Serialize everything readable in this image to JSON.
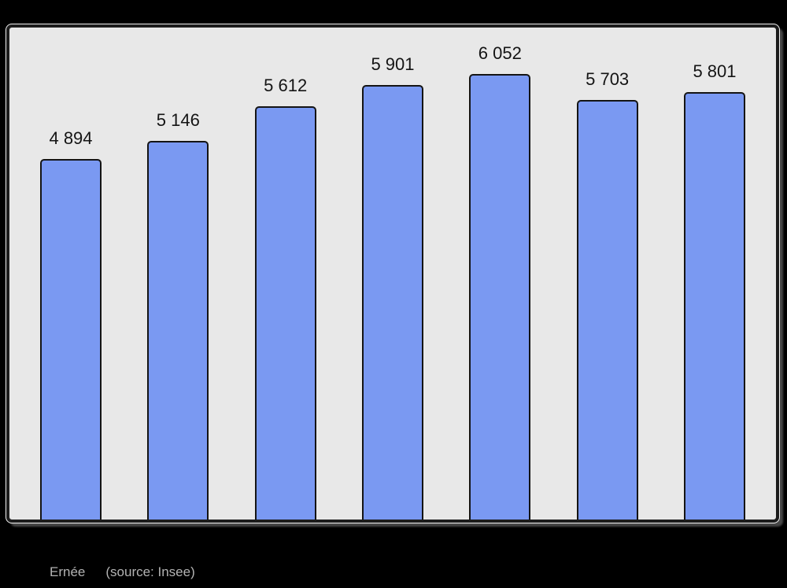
{
  "chart_data": {
    "type": "bar",
    "title": "",
    "values": [
      4894,
      5146,
      5612,
      5901,
      6052,
      5703,
      5801
    ],
    "bar_labels": [
      "4 894",
      "5 146",
      "5 612",
      "5 901",
      "6 052",
      "5 703",
      "5 801"
    ],
    "xlabel": "",
    "ylabel": "",
    "ylim": [
      0,
      6680
    ],
    "grid": false,
    "legend": "none",
    "bar_count": 7
  },
  "caption": {
    "name": "Ernée",
    "source": "(source: Insee)"
  },
  "colors": {
    "page_bg": "#000000",
    "plot_bg": "#e8e8e8",
    "bar_fill": "#7a99f2",
    "bar_border": "#141414",
    "value_label_text": "#141414",
    "caption_text": "#b3b3b3",
    "frame_border": "#1c1c1c"
  }
}
